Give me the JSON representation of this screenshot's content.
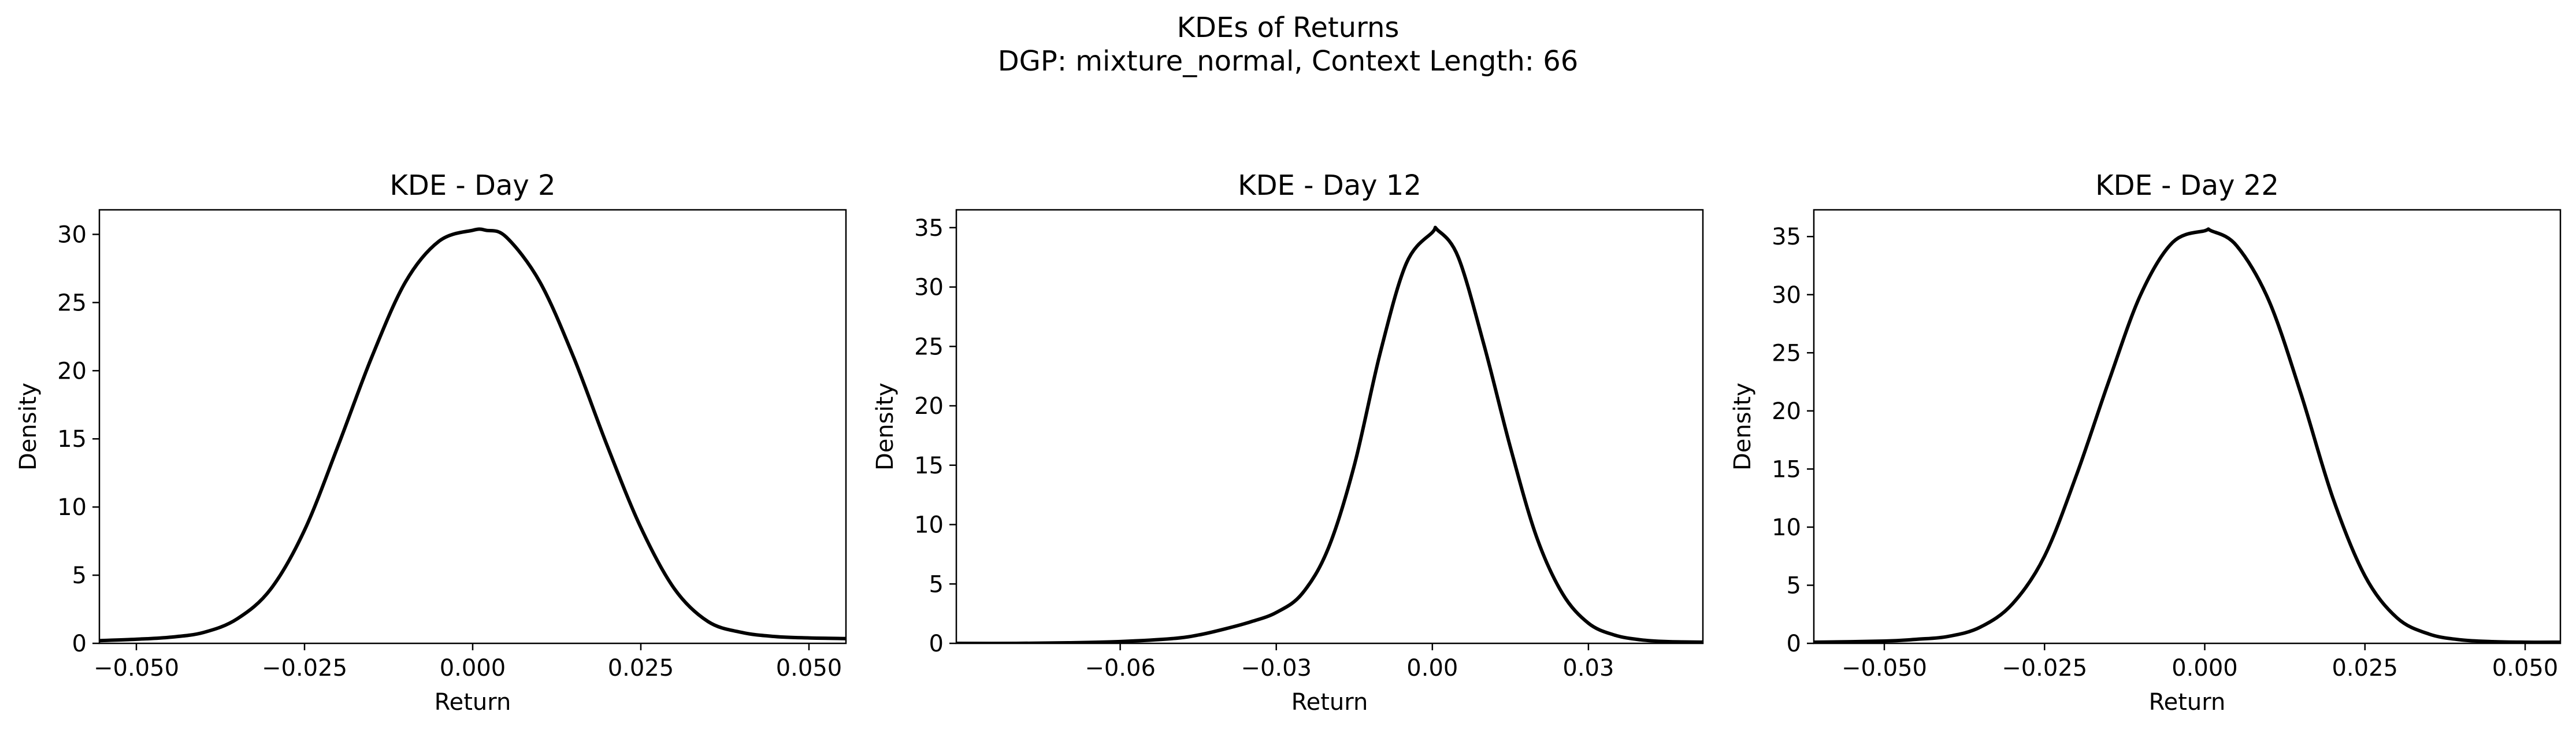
{
  "figure": {
    "title_line1": "KDEs of Returns",
    "title_line2": "DGP: mixture_normal, Context Length: 66"
  },
  "chart_data": [
    {
      "type": "line",
      "title": "KDE - Day 2",
      "xlabel": "Return",
      "ylabel": "Density",
      "xlim": [
        -0.0555,
        0.0555
      ],
      "ylim": [
        0,
        31.8
      ],
      "xticks": [
        -0.05,
        -0.025,
        0.0,
        0.025,
        0.05
      ],
      "xtick_labels": [
        "−0.050",
        "−0.025",
        "0.000",
        "0.025",
        "0.050"
      ],
      "yticks": [
        0,
        5,
        10,
        15,
        20,
        25,
        30
      ],
      "ytick_labels": [
        "0",
        "5",
        "10",
        "15",
        "20",
        "25",
        "30"
      ],
      "grid": false,
      "line_color": "#000000",
      "series": [
        {
          "x": [
            -0.0555,
            -0.05,
            -0.045,
            -0.04,
            -0.035,
            -0.03,
            -0.025,
            -0.02,
            -0.015,
            -0.01,
            -0.005,
            0.0,
            0.002,
            0.005,
            0.01,
            0.015,
            0.02,
            0.025,
            0.03,
            0.035,
            0.04,
            0.045,
            0.05,
            0.0555
          ],
          "y": [
            0.2,
            0.3,
            0.45,
            0.8,
            1.8,
            4.0,
            8.3,
            14.5,
            21.0,
            26.5,
            29.5,
            30.3,
            30.3,
            29.8,
            26.5,
            21.0,
            14.5,
            8.5,
            4.0,
            1.6,
            0.8,
            0.5,
            0.4,
            0.35
          ]
        }
      ]
    },
    {
      "type": "line",
      "title": "KDE - Day 12",
      "xlabel": "Return",
      "ylabel": "Density",
      "xlim": [
        -0.0915,
        0.052
      ],
      "ylim": [
        0,
        36.5
      ],
      "xticks": [
        -0.06,
        -0.03,
        0.0,
        0.03
      ],
      "xtick_labels": [
        "−0.06",
        "−0.03",
        "0.00",
        "0.03"
      ],
      "yticks": [
        0,
        5,
        10,
        15,
        20,
        25,
        30,
        35
      ],
      "ytick_labels": [
        "0",
        "5",
        "10",
        "15",
        "20",
        "25",
        "30",
        "35"
      ],
      "grid": false,
      "line_color": "#000000",
      "series": [
        {
          "x": [
            -0.0915,
            -0.08,
            -0.07,
            -0.06,
            -0.05,
            -0.045,
            -0.04,
            -0.035,
            -0.03,
            -0.025,
            -0.02,
            -0.015,
            -0.01,
            -0.005,
            0.0,
            0.001,
            0.005,
            0.01,
            0.015,
            0.02,
            0.025,
            0.03,
            0.035,
            0.04,
            0.045,
            0.052
          ],
          "y": [
            0.0,
            0.0,
            0.05,
            0.15,
            0.4,
            0.7,
            1.2,
            1.8,
            2.6,
            4.2,
            8.0,
            15.0,
            24.5,
            32.0,
            34.6,
            34.8,
            32.5,
            25.0,
            16.5,
            9.0,
            4.2,
            1.7,
            0.7,
            0.3,
            0.15,
            0.1
          ]
        }
      ]
    },
    {
      "type": "line",
      "title": "KDE - Day 22",
      "xlabel": "Return",
      "ylabel": "Density",
      "xlim": [
        -0.061,
        0.0555
      ],
      "ylim": [
        0,
        37.3
      ],
      "xticks": [
        -0.05,
        -0.025,
        0.0,
        0.025,
        0.05
      ],
      "xtick_labels": [
        "−0.050",
        "−0.025",
        "0.000",
        "0.025",
        "0.050"
      ],
      "yticks": [
        0,
        5,
        10,
        15,
        20,
        25,
        30,
        35
      ],
      "ytick_labels": [
        "0",
        "5",
        "10",
        "15",
        "20",
        "25",
        "30",
        "35"
      ],
      "grid": false,
      "line_color": "#000000",
      "series": [
        {
          "x": [
            -0.061,
            -0.05,
            -0.045,
            -0.04,
            -0.035,
            -0.03,
            -0.025,
            -0.02,
            -0.015,
            -0.01,
            -0.005,
            0.0,
            0.001,
            0.005,
            0.01,
            0.015,
            0.02,
            0.025,
            0.03,
            0.035,
            0.04,
            0.045,
            0.05,
            0.0555
          ],
          "y": [
            0.1,
            0.2,
            0.35,
            0.6,
            1.4,
            3.4,
            7.5,
            14.5,
            22.5,
            30.0,
            34.5,
            35.5,
            35.5,
            34.2,
            29.5,
            21.5,
            12.5,
            5.8,
            2.2,
            0.8,
            0.3,
            0.15,
            0.1,
            0.1
          ]
        }
      ]
    }
  ]
}
